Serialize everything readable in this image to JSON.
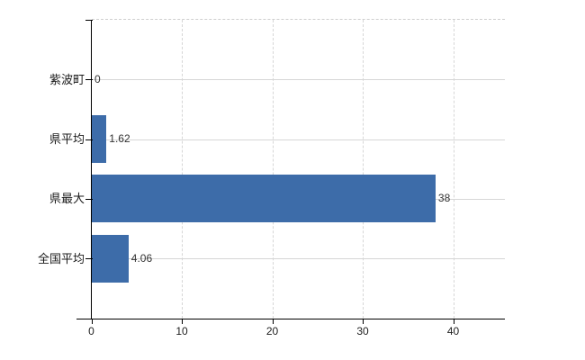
{
  "chart_data": {
    "type": "bar",
    "orientation": "horizontal",
    "title": "",
    "xlabel": "",
    "ylabel": "",
    "categories": [
      "紫波町",
      "県平均",
      "県最大",
      "全国平均"
    ],
    "values": [
      0,
      1.62,
      38,
      4.06
    ],
    "value_labels": [
      "0",
      "1.62",
      "38",
      "4.06"
    ],
    "x_ticks": [
      0,
      10,
      20,
      30,
      40
    ],
    "x_tick_labels": [
      "0",
      "10",
      "20",
      "30",
      "40"
    ],
    "xlim": [
      0,
      45.7
    ],
    "grid": true,
    "legend_position": "none",
    "bar_color": "#3d6ca9",
    "grid_color": "#d6d6d6",
    "plot_border_color": "#cfcfcf",
    "axis_color": "#000000",
    "category_label_color": "#1a1a1a",
    "value_label_color": "#333333",
    "tick_label_color": "#222222",
    "background_color": "#ffffff"
  }
}
